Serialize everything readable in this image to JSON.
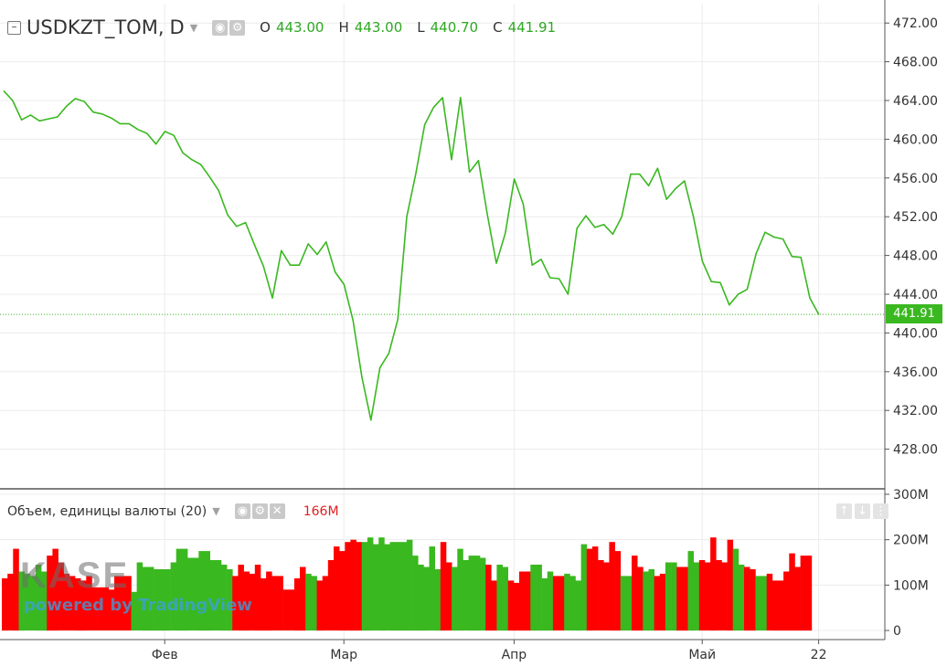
{
  "header": {
    "symbol": "USDKZT_TOM,",
    "interval": "D",
    "collapse_glyph": "–",
    "o_label": "O",
    "o_value": "443.00",
    "h_label": "H",
    "h_value": "443.00",
    "l_label": "L",
    "l_value": "440.70",
    "c_label": "C",
    "c_value": "441.91"
  },
  "volume_header": {
    "title": "Объем, единицы валюты (20)",
    "value": "166M"
  },
  "last_price_label": "441.91",
  "watermark": {
    "logo": "KASE",
    "powered": "powered by TradingView"
  },
  "icons": {
    "header": [
      "eye-icon",
      "gear-icon"
    ],
    "volume": [
      "eye-icon",
      "gear-icon",
      "close-icon"
    ],
    "right": [
      "arrow-up-icon",
      "arrow-down-icon",
      "more-icon"
    ]
  },
  "colors": {
    "line": "#3ab820",
    "up": "#3ab820",
    "down": "#ff0000",
    "grid": "#ececec"
  },
  "chart_data": [
    {
      "type": "line",
      "title": "USDKZT_TOM, D",
      "ylim": [
        424,
        474
      ],
      "y_ticks": [
        "428.00",
        "432.00",
        "436.00",
        "440.00",
        "444.00",
        "448.00",
        "452.00",
        "456.00",
        "460.00",
        "464.00",
        "468.00",
        "472.00"
      ],
      "x_tick_labels": [
        "Фев",
        "Мар",
        "Апр",
        "Май",
        "22"
      ],
      "x_tick_index": [
        19,
        39,
        58,
        79,
        92
      ],
      "last_value": 441.91,
      "grid": true,
      "values": [
        465.0,
        464.0,
        462.0,
        462.5,
        461.9,
        462.1,
        462.3,
        463.4,
        464.2,
        463.9,
        462.8,
        462.6,
        462.2,
        461.6,
        461.6,
        461.0,
        460.6,
        459.5,
        460.8,
        460.4,
        458.6,
        457.9,
        457.4,
        456.1,
        454.7,
        452.2,
        451.0,
        451.4,
        449.1,
        446.9,
        443.6,
        448.5,
        447.0,
        447.0,
        449.2,
        448.1,
        449.4,
        446.3,
        445.0,
        441.3,
        435.4,
        431.0,
        436.4,
        437.9,
        441.4,
        452.0,
        456.4,
        461.5,
        463.3,
        464.3,
        457.9,
        464.3,
        456.6,
        457.8,
        452.2,
        447.2,
        450.3,
        455.9,
        453.3,
        447.0,
        447.6,
        445.7,
        445.6,
        444.0,
        450.8,
        452.1,
        450.9,
        451.2,
        450.2,
        452.0,
        456.4,
        456.4,
        455.2,
        457.0,
        453.8,
        454.9,
        455.7,
        452.0,
        447.4,
        445.3,
        445.2,
        442.9,
        444.0,
        444.5,
        448.2,
        450.4,
        449.9,
        449.7,
        447.9,
        447.8,
        443.6,
        441.9
      ]
    },
    {
      "type": "bar",
      "title": "Объем, единицы валюты (20)",
      "ylim": [
        -20,
        310
      ],
      "y_ticks": [
        "0",
        "100M",
        "200M",
        "300M"
      ],
      "values": [
        115,
        125,
        180,
        130,
        125,
        120,
        145,
        130,
        165,
        180,
        150,
        125,
        120,
        115,
        110,
        120,
        95,
        95,
        95,
        90,
        120,
        120,
        120,
        85,
        150,
        140,
        140,
        135,
        135,
        135,
        150,
        180,
        180,
        160,
        160,
        175,
        175,
        155,
        155,
        145,
        135,
        120,
        145,
        130,
        125,
        145,
        115,
        130,
        120,
        120,
        90,
        90,
        115,
        140,
        125,
        120,
        110,
        120,
        155,
        185,
        175,
        195,
        200,
        195,
        195,
        205,
        190,
        205,
        190,
        195,
        195,
        195,
        200,
        165,
        145,
        140,
        185,
        135,
        195,
        150,
        140,
        180,
        155,
        165,
        165,
        160,
        145,
        110,
        145,
        140,
        110,
        105,
        130,
        130,
        145,
        145,
        115,
        130,
        120,
        120,
        125,
        120,
        110,
        190,
        180,
        185,
        155,
        150,
        195,
        175,
        120,
        120,
        165,
        140,
        130,
        135,
        120,
        125,
        150,
        150,
        140,
        140,
        175,
        150,
        155,
        150,
        205,
        155,
        150,
        200,
        180,
        145,
        140,
        135,
        120,
        120,
        125,
        110,
        110,
        130,
        170,
        140,
        165,
        165
      ],
      "colors": [
        "d",
        "d",
        "d",
        "u",
        "u",
        "u",
        "u",
        "u",
        "d",
        "d",
        "d",
        "d",
        "d",
        "d",
        "d",
        "d",
        "d",
        "d",
        "d",
        "d",
        "d",
        "d",
        "d",
        "u",
        "u",
        "u",
        "u",
        "u",
        "u",
        "u",
        "u",
        "u",
        "u",
        "u",
        "u",
        "u",
        "u",
        "u",
        "u",
        "u",
        "u",
        "d",
        "d",
        "d",
        "d",
        "d",
        "d",
        "d",
        "d",
        "d",
        "d",
        "d",
        "d",
        "d",
        "u",
        "u",
        "d",
        "d",
        "d",
        "d",
        "d",
        "d",
        "d",
        "d",
        "u",
        "u",
        "u",
        "u",
        "u",
        "u",
        "u",
        "u",
        "u",
        "u",
        "u",
        "u",
        "u",
        "u",
        "d",
        "d",
        "u",
        "u",
        "u",
        "u",
        "u",
        "u",
        "d",
        "d",
        "u",
        "u",
        "d",
        "d",
        "d",
        "d",
        "u",
        "u",
        "u",
        "u",
        "d",
        "d",
        "u",
        "u",
        "u",
        "u",
        "d",
        "d",
        "d",
        "d",
        "d",
        "d",
        "u",
        "u",
        "d",
        "d",
        "u",
        "u",
        "d",
        "d",
        "u",
        "u",
        "d",
        "d",
        "u",
        "u",
        "d",
        "d",
        "d",
        "d",
        "d",
        "d",
        "u",
        "u",
        "d",
        "d",
        "u",
        "u",
        "d",
        "d",
        "d",
        "d",
        "d",
        "d",
        "d",
        "d"
      ]
    }
  ]
}
